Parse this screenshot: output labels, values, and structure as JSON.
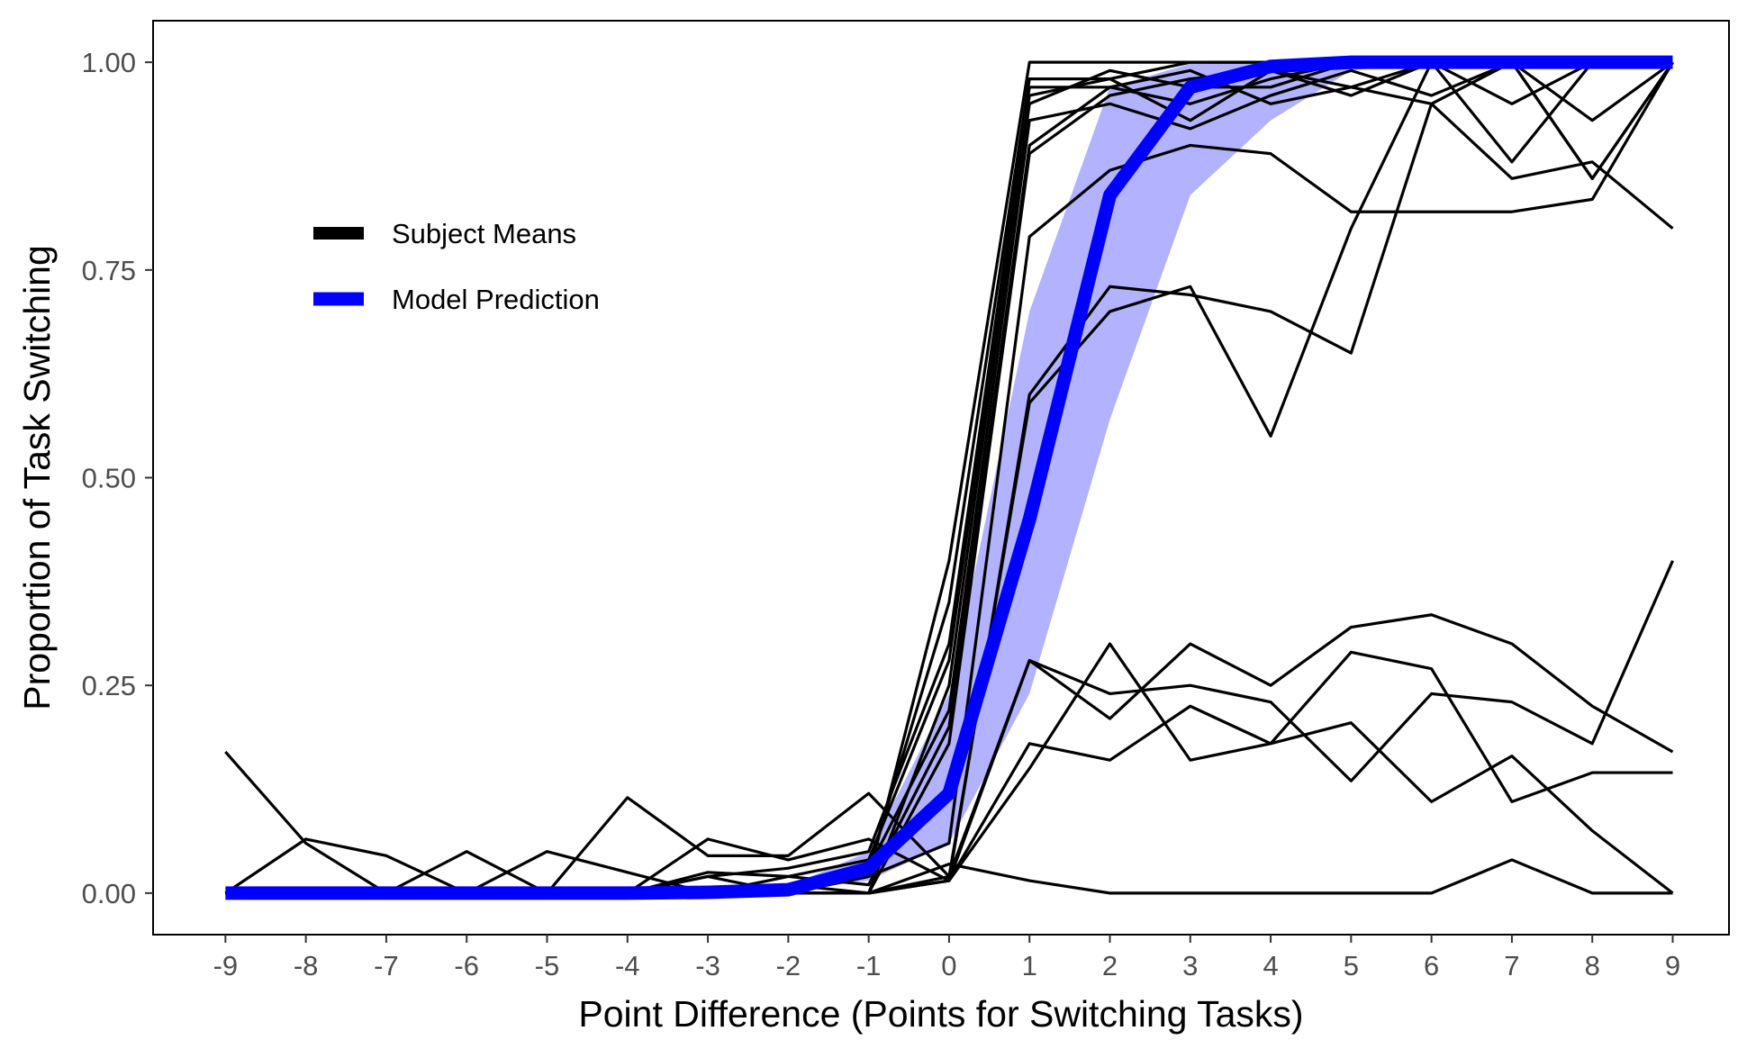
{
  "chart_data": {
    "type": "line",
    "xlabel": "Point Difference (Points for Switching Tasks)",
    "ylabel": "Proportion of Task Switching",
    "x": [
      -9,
      -8,
      -7,
      -6,
      -5,
      -4,
      -3,
      -2,
      -1,
      0,
      1,
      2,
      3,
      4,
      5,
      6,
      7,
      8,
      9
    ],
    "x_ticks": [
      "-9",
      "-8",
      "-7",
      "-6",
      "-5",
      "-4",
      "-3",
      "-2",
      "-1",
      "0",
      "1",
      "2",
      "3",
      "4",
      "5",
      "6",
      "7",
      "8",
      "9"
    ],
    "y_ticks": [
      "0.00",
      "0.25",
      "0.50",
      "0.75",
      "1.00"
    ],
    "xlim": [
      -9.9,
      9.7
    ],
    "ylim": [
      -0.05,
      1.05
    ],
    "grid": false,
    "legend": {
      "position": "top-left",
      "entries": [
        {
          "label": "Subject Means",
          "color": "#000000"
        },
        {
          "label": "Model Prediction",
          "color": "#0000ff"
        }
      ]
    },
    "colors": {
      "subjects": "#000000",
      "model": "#0000ff",
      "band": "#b2b2ff"
    },
    "model_prediction": {
      "name": "Model Prediction",
      "values": [
        0,
        0,
        0,
        0,
        0,
        0,
        0.001,
        0.004,
        0.03,
        0.12,
        0.45,
        0.84,
        0.97,
        0.995,
        1.0,
        1.0,
        1.0,
        1.0,
        1.0
      ],
      "lower": [
        0,
        0,
        0,
        0,
        0,
        0,
        0.0005,
        0.002,
        0.015,
        0.06,
        0.24,
        0.57,
        0.84,
        0.93,
        0.99,
        1.0,
        1.0,
        1.0,
        1.0
      ],
      "upper": [
        0,
        0,
        0,
        0,
        0,
        0,
        0.002,
        0.008,
        0.05,
        0.24,
        0.7,
        0.97,
        0.998,
        1.0,
        1.0,
        1.0,
        1.0,
        1.0,
        1.0
      ]
    },
    "subject_series": [
      {
        "values": [
          0,
          0,
          0,
          0,
          0,
          0,
          0,
          0,
          0.02,
          0.4,
          1.0,
          1.0,
          1.0,
          1.0,
          1.0,
          1.0,
          1.0,
          1.0,
          1.0
        ]
      },
      {
        "values": [
          0,
          0,
          0,
          0,
          0,
          0,
          0,
          0,
          0.03,
          0.35,
          0.98,
          0.98,
          1.0,
          1.0,
          1.0,
          1.0,
          1.0,
          1.0,
          1.0
        ]
      },
      {
        "values": [
          0,
          0,
          0,
          0,
          0,
          0,
          0.02,
          0.03,
          0.05,
          0.3,
          0.97,
          0.97,
          0.95,
          0.98,
          1.0,
          1.0,
          0.95,
          1.0,
          1.0
        ]
      },
      {
        "values": [
          0,
          0,
          0,
          0,
          0,
          0,
          0,
          0.02,
          0.04,
          0.28,
          0.96,
          0.98,
          0.93,
          0.99,
          0.96,
          1.0,
          0.88,
          1.0,
          1.0
        ]
      },
      {
        "values": [
          0,
          0,
          0,
          0,
          0,
          0,
          0,
          0,
          0,
          0.25,
          0.95,
          0.99,
          0.97,
          0.97,
          1.0,
          1.0,
          1.0,
          0.93,
          1.0
        ]
      },
      {
        "values": [
          0,
          0,
          0,
          0,
          0,
          0,
          0,
          0,
          0.03,
          0.22,
          0.93,
          0.95,
          0.92,
          0.96,
          0.99,
          0.96,
          1.0,
          0.86,
          1.0
        ]
      },
      {
        "values": [
          0,
          0,
          0,
          0,
          0,
          0,
          0.025,
          0.02,
          0.01,
          0.2,
          0.9,
          0.97,
          0.99,
          0.95,
          0.97,
          1.0,
          1.0,
          1.0,
          1.0
        ]
      },
      {
        "values": [
          0,
          0.065,
          0.045,
          0,
          0.05,
          0.025,
          0,
          0.01,
          0,
          0.18,
          0.89,
          0.96,
          0.98,
          0.99,
          0.97,
          0.95,
          0.86,
          0.88,
          0.8
        ]
      },
      {
        "values": [
          0,
          0,
          0,
          0,
          0,
          0,
          0.02,
          0,
          0.02,
          0.06,
          0.79,
          0.87,
          0.9,
          0.89,
          0.82,
          0.82,
          0.82,
          0.835,
          1.0
        ]
      },
      {
        "values": [
          0.17,
          0.06,
          0,
          0.05,
          0,
          0,
          0.065,
          0.04,
          0.065,
          0.015,
          0.6,
          0.73,
          0.72,
          0.7,
          0.65,
          0.95,
          1.0,
          1.0,
          1.0
        ]
      },
      {
        "values": [
          0,
          0,
          0,
          0,
          0,
          0.115,
          0.045,
          0.045,
          0.12,
          0.02,
          0.59,
          0.7,
          0.73,
          0.55,
          0.8,
          1.0,
          1.0,
          0.86,
          1.0
        ]
      },
      {
        "values": [
          0,
          0,
          0,
          0,
          0,
          0,
          0,
          0,
          0,
          0.02,
          0.28,
          0.24,
          0.25,
          0.23,
          0.135,
          0.24,
          0.23,
          0.18,
          0.4
        ]
      },
      {
        "values": [
          0,
          0,
          0,
          0,
          0,
          0,
          0,
          0,
          0,
          0.015,
          0.28,
          0.21,
          0.3,
          0.25,
          0.32,
          0.335,
          0.3,
          0.225,
          0.17
        ]
      },
      {
        "values": [
          0,
          0,
          0,
          0,
          0,
          0,
          0,
          0,
          0,
          0.015,
          0.18,
          0.16,
          0.225,
          0.18,
          0.29,
          0.27,
          0.11,
          0.145,
          0.145
        ]
      },
      {
        "values": [
          0,
          0,
          0,
          0,
          0,
          0,
          0,
          0,
          0,
          0.015,
          0.15,
          0.3,
          0.16,
          0.18,
          0.205,
          0.11,
          0.165,
          0.075,
          0
        ]
      },
      {
        "values": [
          0,
          0,
          0,
          0,
          0,
          0,
          0,
          0,
          0,
          0.035,
          0.015,
          0,
          0,
          0,
          0,
          0,
          0.04,
          0,
          0
        ]
      }
    ]
  }
}
